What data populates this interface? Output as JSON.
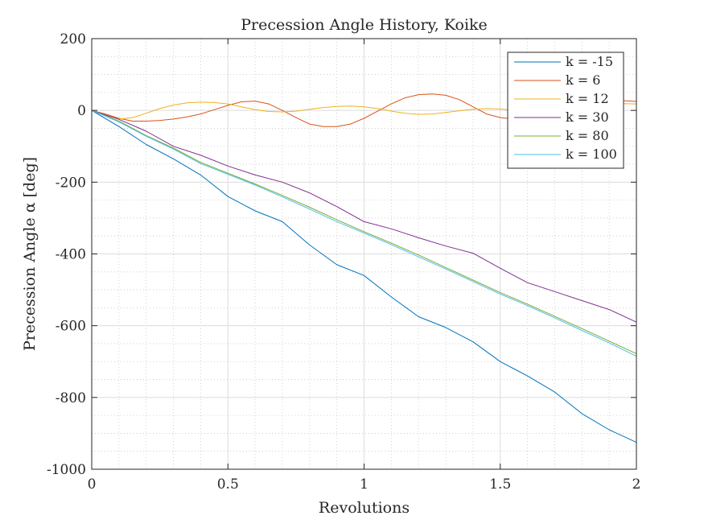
{
  "chart_data": {
    "type": "line",
    "title": "Precession Angle History, Koike",
    "xlabel": "Revolutions",
    "ylabel": "Precession Angle α [deg]",
    "xlim": [
      0,
      2
    ],
    "ylim": [
      -1000,
      200
    ],
    "xticks": [
      0,
      0.5,
      1,
      1.5,
      2
    ],
    "xtick_labels": [
      "0",
      "0.5",
      "1",
      "1.5",
      "2"
    ],
    "yticks": [
      -1000,
      -800,
      -600,
      -400,
      -200,
      0,
      200
    ],
    "ytick_labels": [
      "-1000",
      "-800",
      "-600",
      "-400",
      "-200",
      "0",
      "200"
    ],
    "grid": true,
    "minor_grid": true,
    "legend_position": "top-right",
    "series": [
      {
        "name": "k = -15",
        "color": "#0072BD",
        "x": [
          0,
          0.1,
          0.2,
          0.3,
          0.4,
          0.5,
          0.6,
          0.7,
          0.8,
          0.9,
          1.0,
          1.1,
          1.2,
          1.3,
          1.4,
          1.5,
          1.6,
          1.7,
          1.8,
          1.9,
          2.0
        ],
        "y": [
          0,
          -45,
          -95,
          -135,
          -180,
          -240,
          -280,
          -310,
          -375,
          -430,
          -460,
          -520,
          -575,
          -605,
          -645,
          -700,
          -740,
          -785,
          -845,
          -890,
          -925
        ]
      },
      {
        "name": "k = 6",
        "color": "#D95319",
        "x": [
          0,
          0.05,
          0.1,
          0.15,
          0.2,
          0.25,
          0.3,
          0.35,
          0.4,
          0.45,
          0.5,
          0.55,
          0.6,
          0.65,
          0.7,
          0.75,
          0.8,
          0.85,
          0.9,
          0.95,
          1.0,
          1.05,
          1.1,
          1.15,
          1.2,
          1.25,
          1.3,
          1.35,
          1.4,
          1.45,
          1.5,
          1.55,
          1.6,
          1.65,
          1.7,
          1.75,
          1.8,
          1.85,
          1.9,
          1.95,
          2.0
        ],
        "y": [
          0,
          -10,
          -22,
          -30,
          -30,
          -28,
          -24,
          -18,
          -10,
          2,
          14,
          24,
          26,
          18,
          0,
          -20,
          -38,
          -45,
          -45,
          -38,
          -22,
          -2,
          18,
          35,
          44,
          46,
          42,
          30,
          10,
          -10,
          -20,
          -24,
          -20,
          -10,
          5,
          18,
          25,
          28,
          28,
          27,
          25
        ]
      },
      {
        "name": "k = 12",
        "color": "#EDB120",
        "x": [
          0,
          0.05,
          0.1,
          0.15,
          0.2,
          0.25,
          0.3,
          0.35,
          0.4,
          0.45,
          0.5,
          0.55,
          0.6,
          0.65,
          0.7,
          0.75,
          0.8,
          0.85,
          0.9,
          0.95,
          1.0,
          1.05,
          1.1,
          1.15,
          1.2,
          1.25,
          1.3,
          1.35,
          1.4,
          1.45,
          1.5,
          1.55,
          1.6,
          1.65,
          1.7,
          1.75,
          1.8,
          1.85,
          1.9,
          1.95,
          2.0
        ],
        "y": [
          0,
          -14,
          -24,
          -20,
          -8,
          5,
          15,
          21,
          23,
          22,
          18,
          10,
          2,
          -3,
          -4,
          -2,
          3,
          8,
          11,
          12,
          10,
          5,
          -2,
          -8,
          -11,
          -10,
          -6,
          -1,
          3,
          5,
          4,
          0,
          -3,
          -4,
          -2,
          2,
          8,
          13,
          17,
          19,
          18
        ]
      },
      {
        "name": "k = 30",
        "color": "#7E2F8E",
        "x": [
          0,
          0.1,
          0.2,
          0.3,
          0.4,
          0.5,
          0.6,
          0.7,
          0.8,
          0.9,
          1.0,
          1.1,
          1.2,
          1.3,
          1.4,
          1.5,
          1.6,
          1.7,
          1.8,
          1.9,
          2.0
        ],
        "y": [
          0,
          -25,
          -58,
          -100,
          -125,
          -155,
          -180,
          -200,
          -230,
          -268,
          -310,
          -330,
          -355,
          -378,
          -398,
          -440,
          -480,
          -505,
          -530,
          -555,
          -590
        ]
      },
      {
        "name": "k = 80",
        "color": "#77AC30",
        "x": [
          0,
          0.1,
          0.2,
          0.3,
          0.4,
          0.5,
          0.6,
          0.7,
          0.8,
          0.9,
          1.0,
          1.1,
          1.2,
          1.3,
          1.4,
          1.5,
          1.6,
          1.7,
          1.8,
          1.9,
          2.0
        ],
        "y": [
          0,
          -30,
          -70,
          -105,
          -145,
          -175,
          -205,
          -237,
          -270,
          -305,
          -338,
          -370,
          -403,
          -438,
          -473,
          -508,
          -540,
          -574,
          -608,
          -643,
          -678
        ]
      },
      {
        "name": "k = 100",
        "color": "#4DBEEE",
        "x": [
          0,
          0.1,
          0.2,
          0.3,
          0.4,
          0.5,
          0.6,
          0.7,
          0.8,
          0.9,
          1.0,
          1.1,
          1.2,
          1.3,
          1.4,
          1.5,
          1.6,
          1.7,
          1.8,
          1.9,
          2.0
        ],
        "y": [
          0,
          -32,
          -72,
          -108,
          -148,
          -178,
          -208,
          -241,
          -275,
          -310,
          -342,
          -374,
          -408,
          -442,
          -477,
          -512,
          -544,
          -578,
          -613,
          -648,
          -685
        ]
      }
    ]
  }
}
